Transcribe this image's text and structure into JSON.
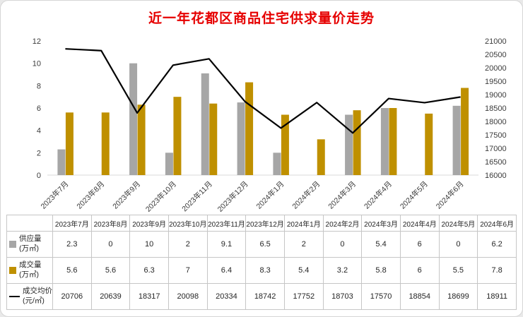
{
  "title": "近一年花都区商品住宅供求量价走势",
  "colors": {
    "title": "#e60000",
    "supply_bar": "#a6a6a6",
    "deal_bar": "#bf9000",
    "price_line": "#000000"
  },
  "chart_data": {
    "type": "bar+line",
    "title": "近一年花都区商品住宅供求量价走势",
    "categories": [
      "2023年7月",
      "2023年8月",
      "2023年9月",
      "2023年10月",
      "2023年11月",
      "2023年12月",
      "2024年1月",
      "2024年2月",
      "2024年3月",
      "2024年4月",
      "2024年5月",
      "2024年6月"
    ],
    "series": [
      {
        "name": "供应量(万㎡)",
        "type": "bar",
        "axis": "left",
        "values": [
          2.3,
          0,
          10,
          2,
          9.1,
          6.5,
          2,
          0,
          5.4,
          6,
          0,
          6.2
        ]
      },
      {
        "name": "成交量(万㎡)",
        "type": "bar",
        "axis": "left",
        "values": [
          5.6,
          5.6,
          6.3,
          7,
          6.4,
          8.3,
          5.4,
          3.2,
          5.8,
          6,
          5.5,
          7.8
        ]
      },
      {
        "name": "成交均价(元/㎡)",
        "type": "line",
        "axis": "right",
        "values": [
          20706,
          20639,
          18317,
          20098,
          20334,
          18742,
          17752,
          18703,
          17570,
          18854,
          18699,
          18911
        ]
      }
    ],
    "left_axis": {
      "min": 0,
      "max": 12,
      "step": 2
    },
    "right_axis": {
      "min": 16000,
      "max": 21000,
      "step": 500
    },
    "grid": false,
    "legend_position": "table-left"
  },
  "table": {
    "rows": [
      {
        "key": "supply",
        "icon_name": "supply-legend-swatch",
        "label": "供应量",
        "unit": "(万㎡)"
      },
      {
        "key": "deal",
        "icon_name": "deal-legend-swatch",
        "label": "成交量",
        "unit": "(万㎡)"
      },
      {
        "key": "price",
        "icon_name": "price-legend-line",
        "label": "成交均价",
        "unit": "(元/㎡)"
      }
    ]
  }
}
